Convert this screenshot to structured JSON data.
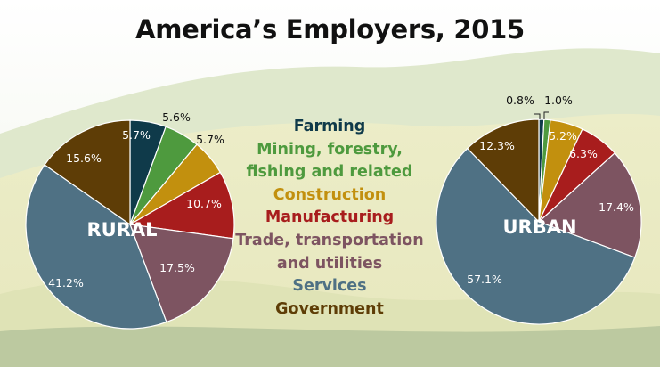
{
  "title": "America’s Employers, 2015",
  "legend": [
    {
      "label": "Farming",
      "color": "#0f3a4a"
    },
    {
      "label": "Mining, forestry,",
      "color": "#4e9a3e"
    },
    {
      "label": "fishing and related",
      "color": "#4e9a3e"
    },
    {
      "label": "Construction",
      "color": "#c2900e"
    },
    {
      "label": "Manufacturing",
      "color": "#a81d1d"
    },
    {
      "label": "Trade, transportation",
      "color": "#7d5461"
    },
    {
      "label": "and utilities",
      "color": "#7d5461"
    },
    {
      "label": "Services",
      "color": "#4f7184"
    },
    {
      "label": "Government",
      "color": "#5e3d06"
    }
  ],
  "chart_data": [
    {
      "type": "pie",
      "title": "RURAL",
      "categories": [
        "Farming",
        "Mining, forestry, fishing and related",
        "Construction",
        "Manufacturing",
        "Trade, transportation and utilities",
        "Services",
        "Government"
      ],
      "values": [
        5.7,
        5.6,
        5.7,
        10.7,
        17.5,
        41.2,
        15.6
      ],
      "labels": [
        "5.7%",
        "5.6%",
        "5.7%",
        "10.7%",
        "17.5%",
        "41.2%",
        "15.6%"
      ],
      "colors": [
        "#0f3a4a",
        "#4e9a3e",
        "#c2900e",
        "#a81d1d",
        "#7d5461",
        "#4f7184",
        "#5e3d06"
      ]
    },
    {
      "type": "pie",
      "title": "URBAN",
      "categories": [
        "Farming",
        "Mining, forestry, fishing and related",
        "Construction",
        "Manufacturing",
        "Trade, transportation and utilities",
        "Services",
        "Government"
      ],
      "values": [
        0.8,
        1.0,
        5.2,
        6.3,
        17.4,
        57.1,
        12.3
      ],
      "labels": [
        "0.8%",
        "1.0%",
        "5.2%",
        "6.3%",
        "17.4%",
        "57.1%",
        "12.3%"
      ],
      "colors": [
        "#0f3a4a",
        "#4e9a3e",
        "#c2900e",
        "#a81d1d",
        "#7d5461",
        "#4f7184",
        "#5e3d06"
      ]
    }
  ]
}
